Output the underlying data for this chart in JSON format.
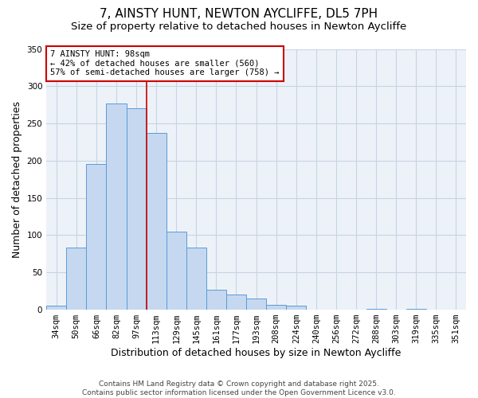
{
  "title": "7, AINSTY HUNT, NEWTON AYCLIFFE, DL5 7PH",
  "subtitle": "Size of property relative to detached houses in Newton Aycliffe",
  "xlabel": "Distribution of detached houses by size in Newton Aycliffe",
  "ylabel": "Number of detached properties",
  "categories": [
    "34sqm",
    "50sqm",
    "66sqm",
    "82sqm",
    "97sqm",
    "113sqm",
    "129sqm",
    "145sqm",
    "161sqm",
    "177sqm",
    "193sqm",
    "208sqm",
    "224sqm",
    "240sqm",
    "256sqm",
    "272sqm",
    "288sqm",
    "303sqm",
    "319sqm",
    "335sqm",
    "351sqm"
  ],
  "values": [
    5,
    83,
    196,
    277,
    270,
    237,
    105,
    83,
    27,
    20,
    15,
    7,
    5,
    0,
    0,
    0,
    1,
    0,
    1,
    0,
    0
  ],
  "bar_color": "#c5d8f0",
  "bar_edge_color": "#5b9bd5",
  "ylim": [
    0,
    350
  ],
  "yticks": [
    0,
    50,
    100,
    150,
    200,
    250,
    300,
    350
  ],
  "marker_bar_index": 4,
  "marker_label": "7 AINSTY HUNT: 98sqm",
  "annotation_line1": "← 42% of detached houses are smaller (560)",
  "annotation_line2": "57% of semi-detached houses are larger (758) →",
  "annotation_box_color": "#ffffff",
  "annotation_box_edge_color": "#cc0000",
  "marker_line_color": "#cc0000",
  "grid_color": "#c8d4e3",
  "bg_color": "#edf2f9",
  "footer_line1": "Contains HM Land Registry data © Crown copyright and database right 2025.",
  "footer_line2": "Contains public sector information licensed under the Open Government Licence v3.0.",
  "title_fontsize": 11,
  "subtitle_fontsize": 9.5,
  "axis_label_fontsize": 9,
  "tick_fontsize": 7.5,
  "footer_fontsize": 6.5
}
